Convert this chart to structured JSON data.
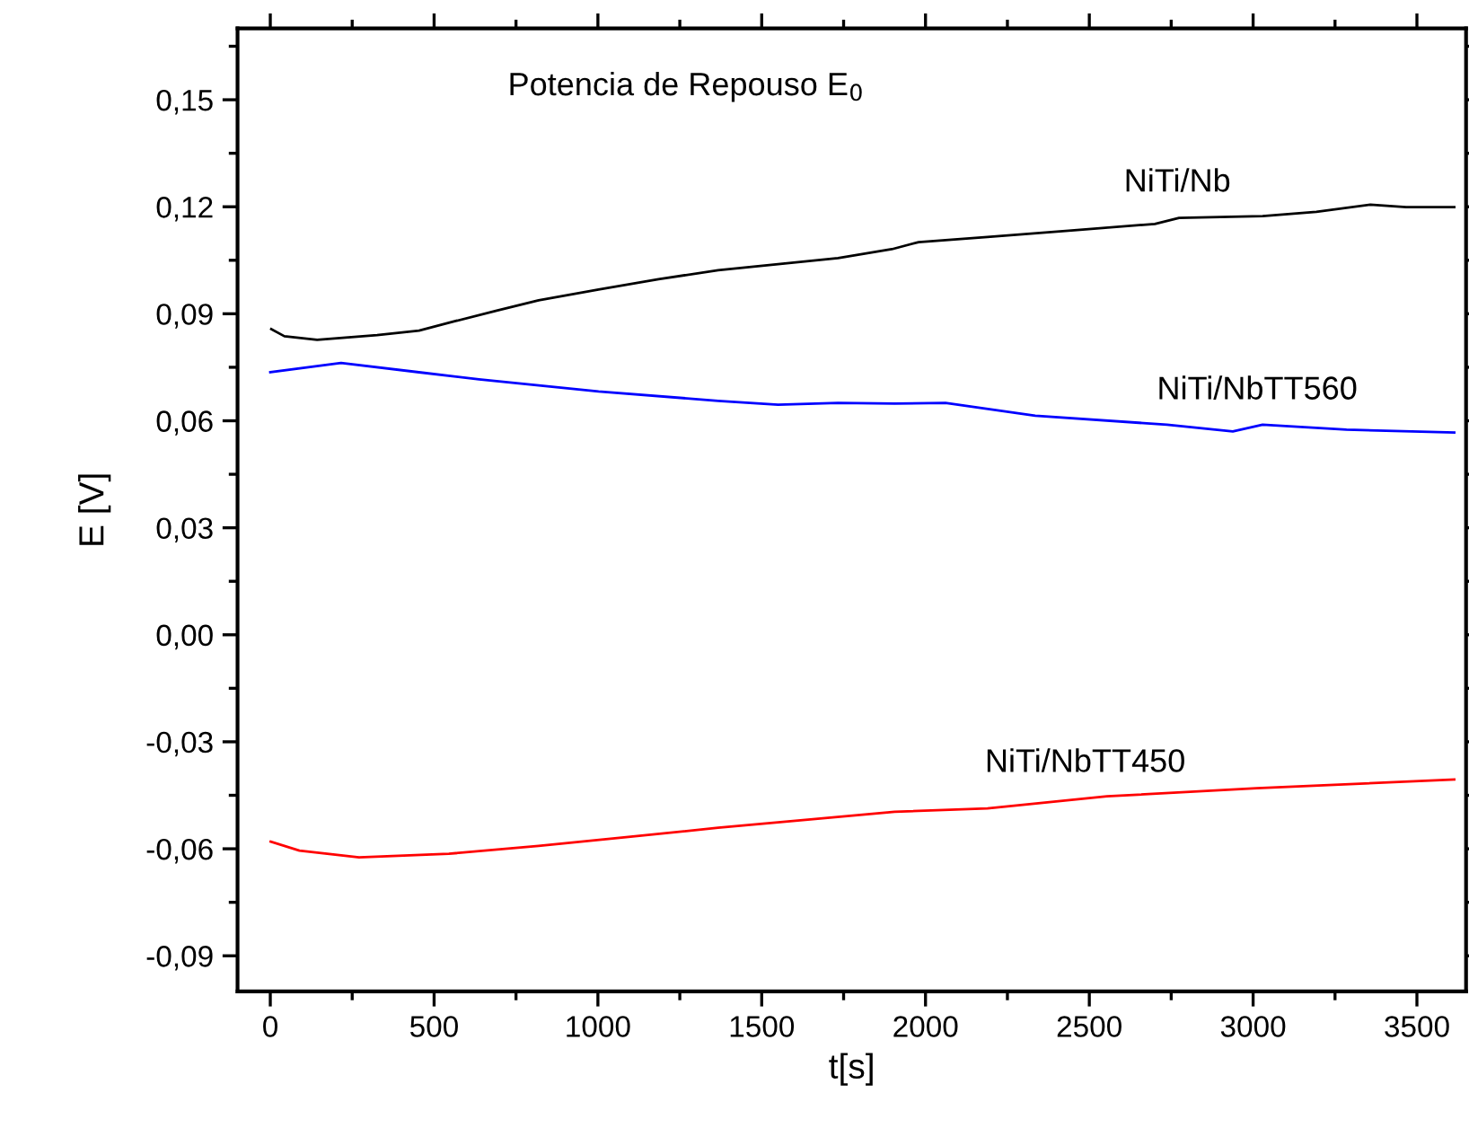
{
  "chart_data": {
    "type": "line",
    "title": "Potencia de Repouso E$_{0}$",
    "xlabel": "t[s]",
    "ylabel": "E [V]",
    "xlim": [
      -100,
      3650
    ],
    "ylim": [
      -0.1,
      0.17
    ],
    "xticks": [
      0,
      500,
      1000,
      1500,
      2000,
      2500,
      3000,
      3500
    ],
    "yticks": [
      {
        "value": -0.09,
        "label": "-0,09"
      },
      {
        "value": -0.06,
        "label": "-0,06"
      },
      {
        "value": -0.03,
        "label": "-0,03"
      },
      {
        "value": 0,
        "label": "0,00"
      },
      {
        "value": 0.03,
        "label": "0,03"
      },
      {
        "value": 0.06,
        "label": "0,06"
      },
      {
        "value": 0.09,
        "label": "0,09"
      },
      {
        "value": 0.12,
        "label": "0,12"
      },
      {
        "value": 0.15,
        "label": "0,15"
      }
    ],
    "grid": false,
    "legend": false,
    "marker": "none",
    "line_style": "solid",
    "series": [
      {
        "name": "NiTi/Nb",
        "color": "#000000",
        "x": [
          3,
          43,
          143,
          326,
          454,
          563,
          691,
          819,
          1002,
          1185,
          1367,
          1550,
          1733,
          1897,
          1979,
          2189,
          2463,
          2700,
          2774,
          3029,
          3193,
          3358,
          3467,
          3614
        ],
        "values": [
          0.0857,
          0.0837,
          0.0827,
          0.084,
          0.0853,
          0.0879,
          0.0909,
          0.0938,
          0.0968,
          0.0997,
          0.1022,
          0.1039,
          0.1056,
          0.1081,
          0.1101,
          0.1115,
          0.1135,
          0.1152,
          0.1169,
          0.1174,
          0.1186,
          0.1206,
          0.1199,
          0.1199
        ]
      },
      {
        "name": "NiTi/NbTT560",
        "color": "#0000ff",
        "x": [
          0,
          216,
          454,
          637,
          1002,
          1367,
          1550,
          1733,
          1906,
          2061,
          2335,
          2737,
          2938,
          3029,
          3285,
          3614
        ],
        "values": [
          0.0736,
          0.0762,
          0.0736,
          0.0716,
          0.0682,
          0.0656,
          0.0645,
          0.065,
          0.0648,
          0.065,
          0.0614,
          0.0589,
          0.057,
          0.0589,
          0.0575,
          0.0567
        ]
      },
      {
        "name": "NiTi/NbTT450",
        "color": "#ff0000",
        "x": [
          1,
          89,
          271,
          545,
          819,
          1093,
          1367,
          1641,
          1906,
          2189,
          2554,
          3011,
          3614
        ],
        "values": [
          -0.058,
          -0.0605,
          -0.0624,
          -0.0614,
          -0.0592,
          -0.0567,
          -0.0541,
          -0.0518,
          -0.0496,
          -0.0487,
          -0.0453,
          -0.043,
          -0.0406
        ]
      }
    ]
  }
}
